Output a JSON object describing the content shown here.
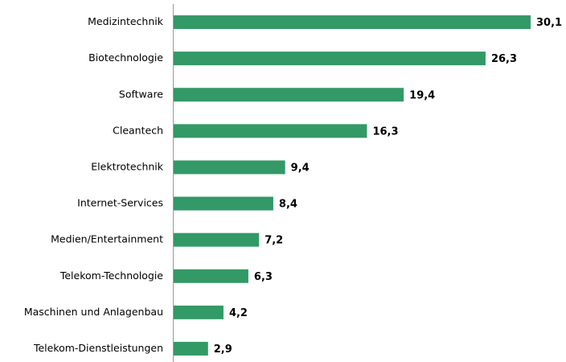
{
  "chart_data": {
    "type": "barh",
    "categories": [
      "Medizintechnik",
      "Biotechnologie",
      "Software",
      "Cleantech",
      "Elektrotechnik",
      "Internet-Services",
      "Medien/Entertainment",
      "Telekom-Technologie",
      "Maschinen und Anlagenbau",
      "Telekom-Dienstleistungen"
    ],
    "values": [
      30.1,
      26.3,
      19.4,
      16.3,
      9.4,
      8.4,
      7.2,
      6.3,
      4.2,
      2.9
    ],
    "value_labels": [
      "30,1",
      "26,3",
      "19,4",
      "16,3",
      "9,4",
      "8,4",
      "7,2",
      "6,3",
      "4,2",
      "2,9"
    ],
    "color": "#339966"
  }
}
